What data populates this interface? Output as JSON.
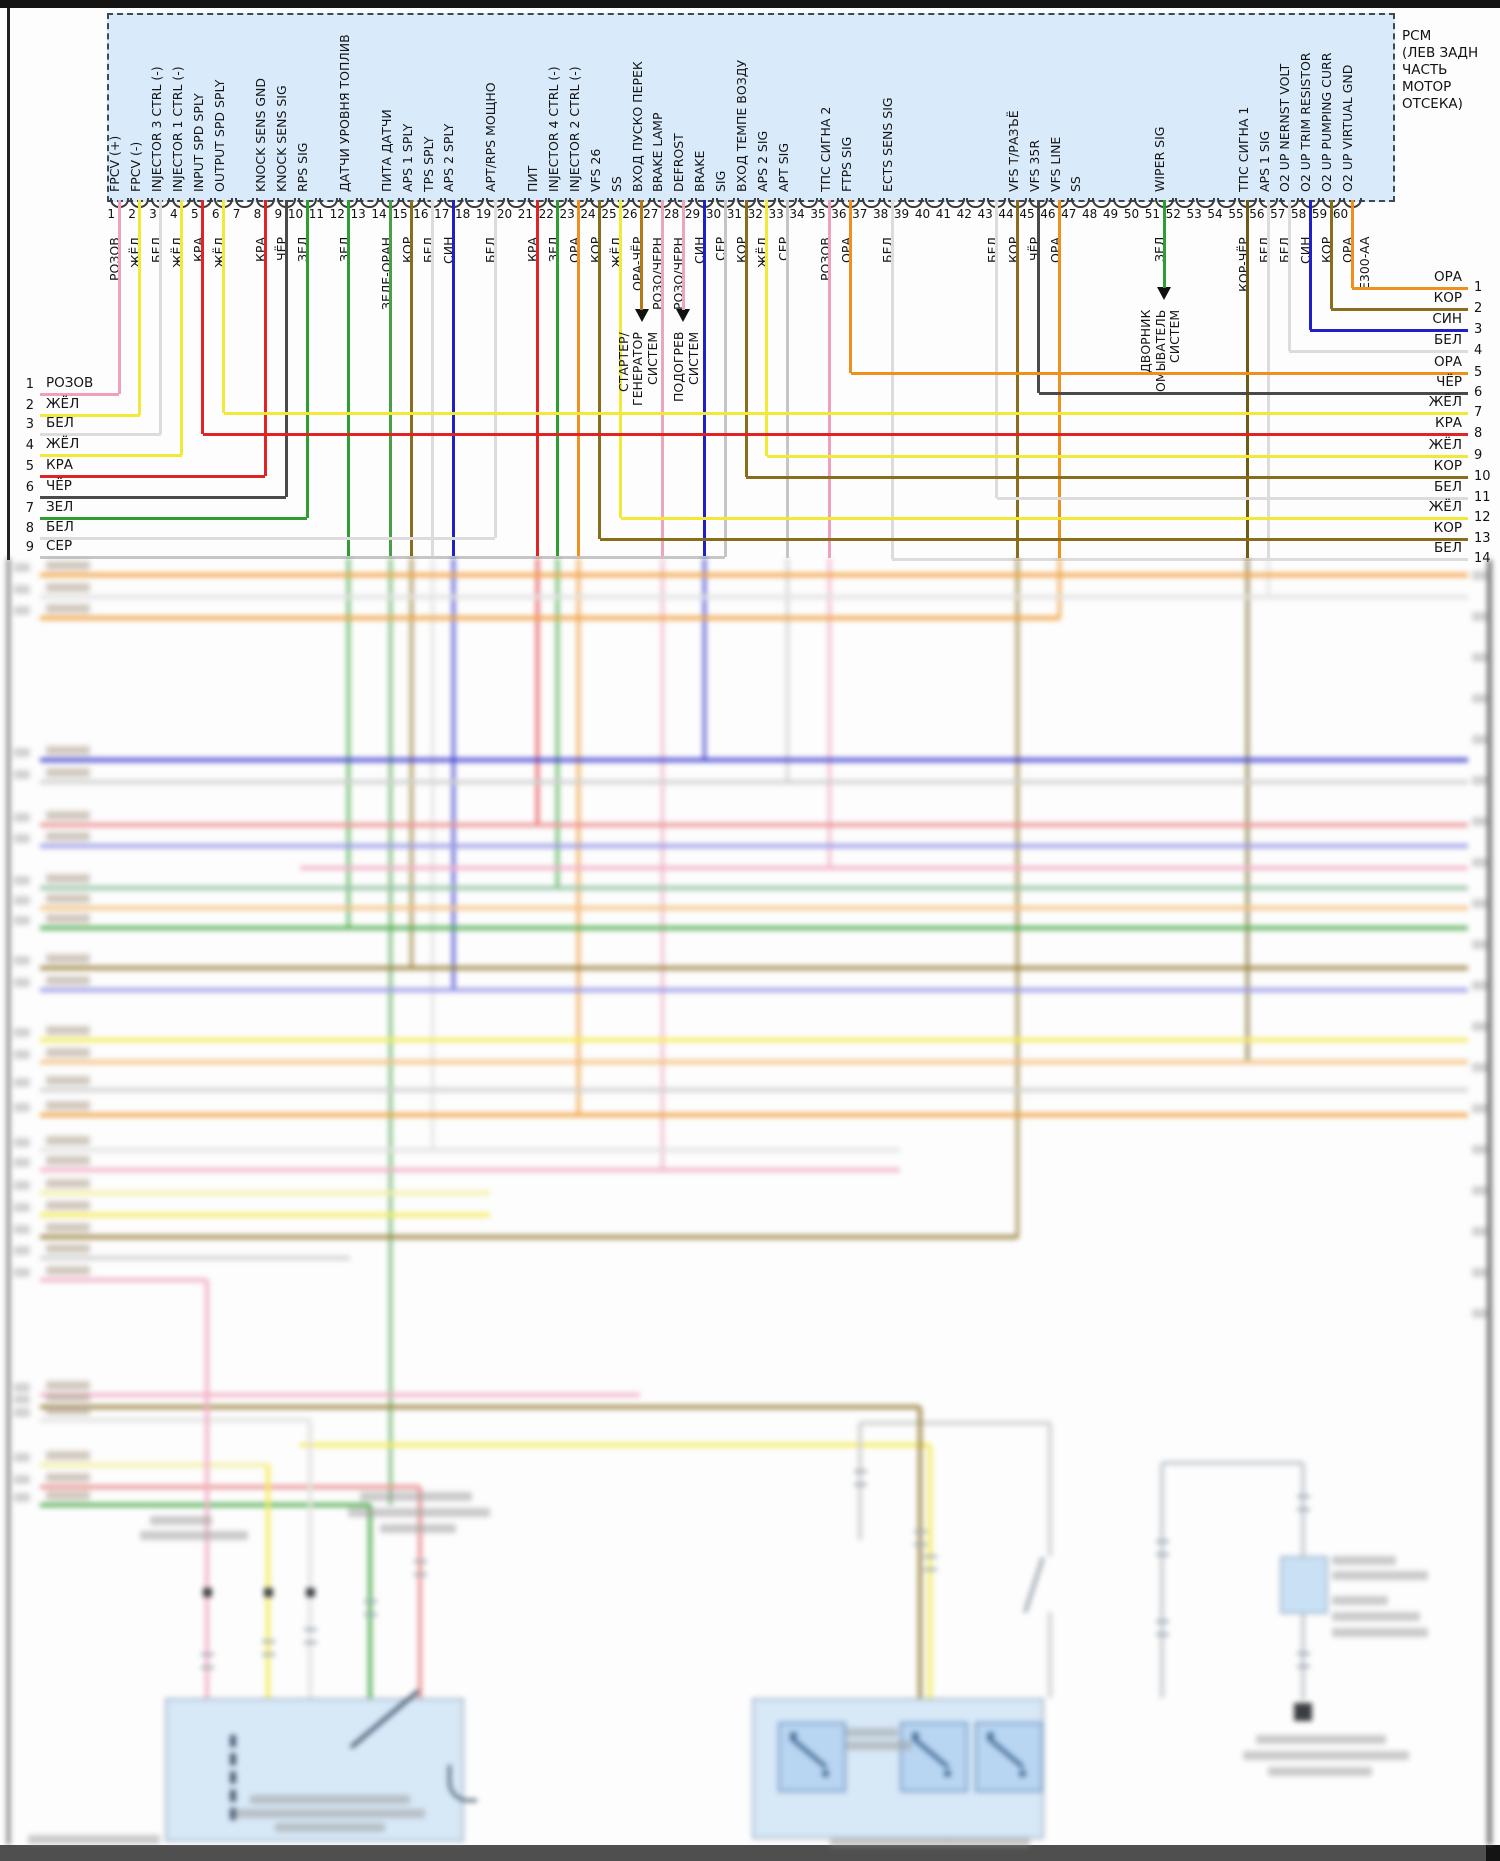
{
  "pcm": {
    "title_lines": [
      "PCM",
      "(ЛЕВ ЗАДН",
      "ЧАСТЬ",
      "МОТОР",
      "ОТСЕКА)"
    ],
    "connector_code": "E300-AA"
  },
  "wire_colors": {
    "РОЗОВ": "#f0a0bc",
    "ЖЁЛ": "#f2e838",
    "БЕЛ": "#dcdcdc",
    "КРА": "#e02424",
    "ЧЁР": "#4a4a4a",
    "ЗЕЛ": "#2f9e2f",
    "СЕР": "#c6c6c6",
    "КОР": "#8a6d1c",
    "СИН": "#2020c8",
    "ОРА": "#ef8f1c",
    "ЗЕЛЕ-ОРАН": "#46a046",
    "ОРА-ЧЁР": "#b27a18",
    "РОЗО/ЧЕРН": "#eba6bb",
    "КОР-ЧЁР": "#6e5c14"
  },
  "pins": [
    {
      "n": 1,
      "signal": "FPCV (+)",
      "color": "РОЗОВ",
      "to": "L1"
    },
    {
      "n": 2,
      "signal": "FPCV (-)",
      "color": "ЖЁЛ",
      "to": "L2"
    },
    {
      "n": 3,
      "signal": "INJECTOR 3 CTRL (-)",
      "color": "БЕЛ",
      "to": "L3"
    },
    {
      "n": 4,
      "signal": "INJECTOR 1 CTRL (-)",
      "color": "ЖЁЛ",
      "to": "L4"
    },
    {
      "n": 5,
      "signal": "INPUT SPD SPLY",
      "color": "КРА",
      "to": "R8"
    },
    {
      "n": 6,
      "signal": "OUTPUT SPD SPLY",
      "color": "ЖЁЛ",
      "to": "R7"
    },
    {
      "n": 7,
      "signal": "",
      "color": "",
      "to": ""
    },
    {
      "n": 8,
      "signal": "KNOCK SENS GND",
      "color": "КРА",
      "to": "L5"
    },
    {
      "n": 9,
      "signal": "KNOCK SENS SIG",
      "color": "ЧЁР",
      "to": "L6"
    },
    {
      "n": 10,
      "signal": "RPS SIG",
      "color": "ЗЕЛ",
      "to": "L7"
    },
    {
      "n": 11,
      "signal": "",
      "color": "",
      "to": ""
    },
    {
      "n": 12,
      "signal": "ДАТЧИ УРОВНЯ ТОПЛИВ",
      "color": "ЗЕЛ",
      "to": "drop"
    },
    {
      "n": 13,
      "signal": "",
      "color": "",
      "to": ""
    },
    {
      "n": 14,
      "signal": "ПИТА ДАТЧИ",
      "color": "ЗЕЛЕ-ОРАН",
      "to": "drop"
    },
    {
      "n": 15,
      "signal": "APS 1 SPLY",
      "color": "КОР",
      "to": "drop"
    },
    {
      "n": 16,
      "signal": "TPS SPLY",
      "color": "БЕЛ",
      "to": "drop"
    },
    {
      "n": 17,
      "signal": "APS 2 SPLY",
      "color": "СИН",
      "to": "drop"
    },
    {
      "n": 18,
      "signal": "",
      "color": "",
      "to": ""
    },
    {
      "n": 19,
      "signal": "APT/RPS МОЩНО",
      "color": "БЕЛ",
      "to": "L8"
    },
    {
      "n": 20,
      "signal": "",
      "color": "",
      "to": ""
    },
    {
      "n": 21,
      "signal": "ПИТ",
      "color": "КРА",
      "to": "drop"
    },
    {
      "n": 22,
      "signal": "INJECTOR 4 CTRL (-)",
      "color": "ЗЕЛ",
      "to": "drop"
    },
    {
      "n": 23,
      "signal": "INJECTOR 2 CTRL (-)",
      "color": "ОРА",
      "to": "drop"
    },
    {
      "n": 24,
      "signal": "VFS 26",
      "color": "КОР",
      "to": "R13"
    },
    {
      "n": 25,
      "signal": "SS",
      "color": "ЖЁЛ",
      "to": "R12"
    },
    {
      "n": 26,
      "signal": "ВХОД ПУСКО ПЕРЕК",
      "color": "ОРА-ЧЁР",
      "to": "A:starter"
    },
    {
      "n": 27,
      "signal": "BRAKE LAMP",
      "color": "РОЗО/ЧЕРН",
      "to": "drop"
    },
    {
      "n": 28,
      "signal": "DEFROST",
      "color": "РОЗО/ЧЕРН",
      "to": "A:heater"
    },
    {
      "n": 29,
      "signal": "BRAKE",
      "color": "СИН",
      "to": "drop"
    },
    {
      "n": 30,
      "signal": "SIG",
      "color": "СЕР",
      "to": "L9"
    },
    {
      "n": 31,
      "signal": "ВХОД ТЕМПЕ ВОЗДУ",
      "color": "КОР",
      "to": "R10"
    },
    {
      "n": 32,
      "signal": "APS 2 SIG",
      "color": "ЖЁЛ",
      "to": "R9"
    },
    {
      "n": 33,
      "signal": "APT SIG",
      "color": "СЕР",
      "to": "drop"
    },
    {
      "n": 34,
      "signal": "",
      "color": "",
      "to": ""
    },
    {
      "n": 35,
      "signal": "ТПС СИГНА 2",
      "color": "РОЗОВ",
      "to": "drop"
    },
    {
      "n": 36,
      "signal": "FTPS SIG",
      "color": "ОРА",
      "to": "R5"
    },
    {
      "n": 37,
      "signal": "",
      "color": "",
      "to": ""
    },
    {
      "n": 38,
      "signal": "ECTS SENS SIG",
      "color": "БЕЛ",
      "to": "R14"
    },
    {
      "n": 39,
      "signal": "",
      "color": "",
      "to": ""
    },
    {
      "n": 40,
      "signal": "",
      "color": "",
      "to": ""
    },
    {
      "n": 41,
      "signal": "",
      "color": "",
      "to": ""
    },
    {
      "n": 42,
      "signal": "",
      "color": "",
      "to": ""
    },
    {
      "n": 43,
      "signal": "",
      "color": "БЕЛ",
      "to": "R11"
    },
    {
      "n": 44,
      "signal": "VFS Т/РАЗЪЁ",
      "color": "КОР",
      "to": "drop"
    },
    {
      "n": 45,
      "signal": "VFS 35R",
      "color": "ЧЁР",
      "to": "R6"
    },
    {
      "n": 46,
      "signal": "VFS LINE",
      "color": "ОРА",
      "to": "drop"
    },
    {
      "n": 47,
      "signal": "SS",
      "color": "",
      "to": ""
    },
    {
      "n": 48,
      "signal": "",
      "color": "",
      "to": ""
    },
    {
      "n": 49,
      "signal": "",
      "color": "",
      "to": ""
    },
    {
      "n": 50,
      "signal": "",
      "color": "",
      "to": ""
    },
    {
      "n": 51,
      "signal": "WIPER SIG",
      "color": "ЗЕЛ",
      "to": "A:wiper"
    },
    {
      "n": 52,
      "signal": "",
      "color": "",
      "to": ""
    },
    {
      "n": 53,
      "signal": "",
      "color": "",
      "to": ""
    },
    {
      "n": 54,
      "signal": "",
      "color": "",
      "to": ""
    },
    {
      "n": 55,
      "signal": "ТПС СИГНА 1",
      "color": "КОР-ЧЁР",
      "to": "drop"
    },
    {
      "n": 56,
      "signal": "APS 1 SIG",
      "color": "БЕЛ",
      "to": "drop"
    },
    {
      "n": 57,
      "signal": "O2 UP NERNST VOLT",
      "color": "БЕЛ",
      "to": "R4"
    },
    {
      "n": 58,
      "signal": "O2 UP TRIM RESISTOR",
      "color": "СИН",
      "to": "R3"
    },
    {
      "n": 59,
      "signal": "O2 UP PUMPING CURR",
      "color": "КОР",
      "to": "R2"
    },
    {
      "n": 60,
      "signal": "O2 UP VIRTUAL GND",
      "color": "ОРА",
      "to": "R1"
    }
  ],
  "left_rows": [
    {
      "n": 1,
      "label": "РОЗОВ"
    },
    {
      "n": 2,
      "label": "ЖЁЛ"
    },
    {
      "n": 3,
      "label": "БЕЛ"
    },
    {
      "n": 4,
      "label": "ЖЁЛ"
    },
    {
      "n": 5,
      "label": "КРА"
    },
    {
      "n": 6,
      "label": "ЧЁР"
    },
    {
      "n": 7,
      "label": "ЗЕЛ"
    },
    {
      "n": 8,
      "label": "БЕЛ"
    },
    {
      "n": 9,
      "label": "СЕР"
    }
  ],
  "right_rows": [
    {
      "n": 1,
      "label": "ОРА"
    },
    {
      "n": 2,
      "label": "КОР"
    },
    {
      "n": 3,
      "label": "СИН"
    },
    {
      "n": 4,
      "label": "БЕЛ"
    },
    {
      "n": 5,
      "label": "ОРА"
    },
    {
      "n": 6,
      "label": "ЧЁР"
    },
    {
      "n": 7,
      "label": "ЖЁЛ"
    },
    {
      "n": 8,
      "label": "КРА"
    },
    {
      "n": 9,
      "label": "ЖЁЛ"
    },
    {
      "n": 10,
      "label": "КОР"
    },
    {
      "n": 11,
      "label": "БЕЛ"
    },
    {
      "n": 12,
      "label": "ЖЁЛ"
    },
    {
      "n": 13,
      "label": "КОР"
    },
    {
      "n": 14,
      "label": "БЕЛ"
    }
  ],
  "annotations": {
    "starter": {
      "lines": [
        "СТАРТЕР/",
        "ГЕНЕРАТОР",
        "СИСТЕМ"
      ]
    },
    "heater": {
      "lines": [
        "ПОДОГРЕВ",
        "СИСТЕМ"
      ]
    },
    "wiper": {
      "lines": [
        "ДВОРНИК",
        "ОМЫВАТЕЛЬ",
        "СИСТЕМ"
      ]
    }
  }
}
